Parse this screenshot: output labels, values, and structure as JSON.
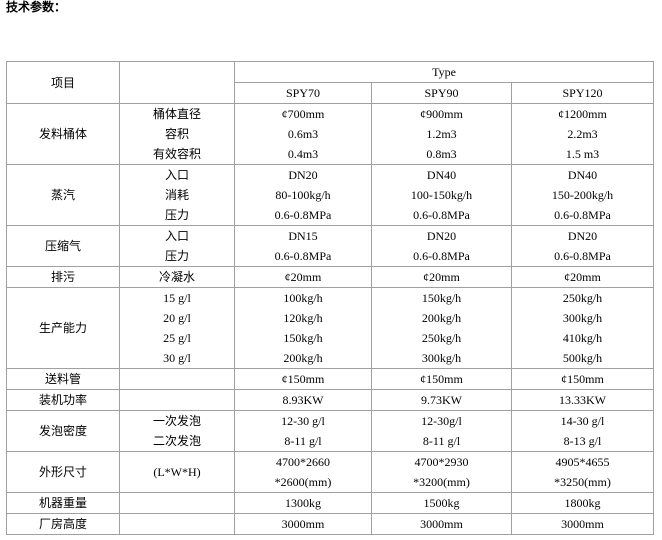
{
  "title": "技术参数：",
  "header": {
    "item": "项目",
    "type": "Type",
    "models": [
      "SPY70",
      "SPY90",
      "SPY120"
    ]
  },
  "rows": [
    {
      "label": "发料桶体",
      "sub": [
        "桶体直径",
        "容积",
        "有效容积"
      ],
      "values": [
        [
          "¢700mm",
          "0.6m3",
          "0.4m3"
        ],
        [
          "¢900mm",
          "1.2m3",
          "0.8m3"
        ],
        [
          "¢1200mm",
          "2.2m3",
          "1.5 m3"
        ]
      ]
    },
    {
      "label": "蒸汽",
      "sub": [
        "入口",
        "消耗",
        "压力"
      ],
      "values": [
        [
          "DN20",
          "80-100kg/h",
          "0.6-0.8MPa"
        ],
        [
          "DN40",
          "100-150kg/h",
          "0.6-0.8MPa"
        ],
        [
          "DN40",
          "150-200kg/h",
          "0.6-0.8MPa"
        ]
      ]
    },
    {
      "label": "压缩气",
      "sub": [
        "入口",
        "压力"
      ],
      "values": [
        [
          "DN15",
          "0.6-0.8MPa"
        ],
        [
          "DN20",
          "0.6-0.8MPa"
        ],
        [
          "DN20",
          "0.6-0.8MPa"
        ]
      ]
    },
    {
      "label": "排污",
      "sub": [
        "冷凝水"
      ],
      "values": [
        [
          "¢20mm"
        ],
        [
          "¢20mm"
        ],
        [
          "¢20mm"
        ]
      ]
    },
    {
      "label": "生产能力",
      "sub": [
        "15 g/l",
        "20 g/l",
        "25 g/l",
        "30 g/l"
      ],
      "values": [
        [
          "100kg/h",
          "120kg/h",
          "150kg/h",
          "200kg/h"
        ],
        [
          "150kg/h",
          "200kg/h",
          "250kg/h",
          "300kg/h"
        ],
        [
          "250kg/h",
          "300kg/h",
          "410kg/h",
          "500kg/h"
        ]
      ]
    },
    {
      "label": "送料管",
      "sub": [],
      "values": [
        [
          "¢150mm"
        ],
        [
          "¢150mm"
        ],
        [
          "¢150mm"
        ]
      ]
    },
    {
      "label": "装机功率",
      "sub": [],
      "values": [
        [
          "8.93KW"
        ],
        [
          "9.73KW"
        ],
        [
          "13.33KW"
        ]
      ]
    },
    {
      "label": "发泡密度",
      "sub": [
        "一次发泡",
        "二次发泡"
      ],
      "values": [
        [
          "12-30 g/l",
          "8-11 g/l"
        ],
        [
          "12-30g/l",
          "8-11 g/l"
        ],
        [
          "14-30 g/l",
          "8-13 g/l"
        ]
      ]
    },
    {
      "label": "外形尺寸",
      "sub": [
        "(L*W*H)"
      ],
      "values": [
        [
          "4700*2660",
          "*2600(mm)"
        ],
        [
          "4700*2930",
          "*3200(mm)"
        ],
        [
          "4905*4655",
          "*3250(mm)"
        ]
      ]
    },
    {
      "label": "机器重量",
      "sub": [],
      "values": [
        [
          "1300kg"
        ],
        [
          "1500kg"
        ],
        [
          "1800kg"
        ]
      ]
    },
    {
      "label": "厂房高度",
      "sub": [],
      "values": [
        [
          "3000mm"
        ],
        [
          "3000mm"
        ],
        [
          "3000mm"
        ]
      ]
    }
  ]
}
